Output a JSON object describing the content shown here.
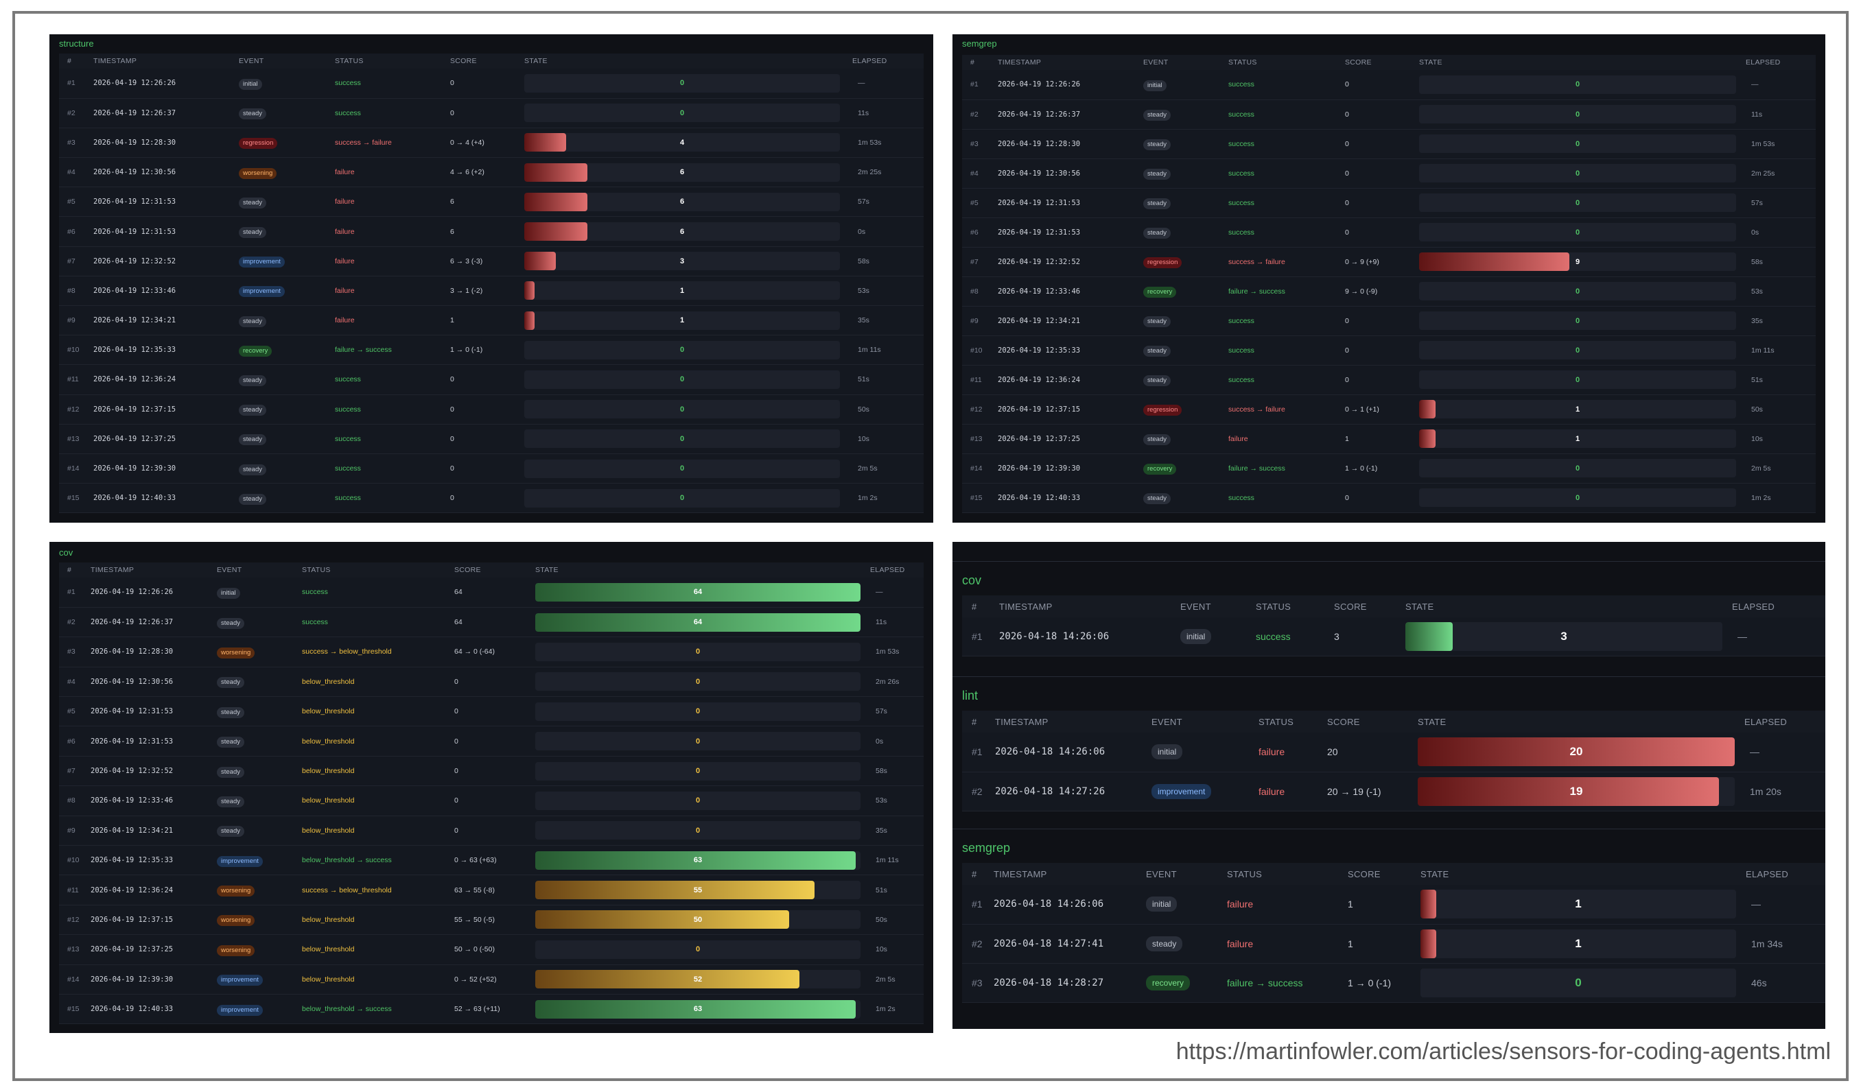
{
  "footer": {
    "url": "https://martinfowler.com/articles/sensors-for-coding-agents.html"
  },
  "headers": {
    "num": "#",
    "timestamp": "TIMESTAMP",
    "event": "EVENT",
    "status": "STATUS",
    "score": "SCORE",
    "state": "STATE",
    "elapsed": "ELAPSED"
  },
  "panels": [
    {
      "id": "structure",
      "title": "structure",
      "scale": "small",
      "rows": [
        {
          "n": "#1",
          "ts": "2026-04-19 12:26:26",
          "ev": "initial",
          "st": "success",
          "sc": "0",
          "val": 0,
          "el": "—"
        },
        {
          "n": "#2",
          "ts": "2026-04-19 12:26:37",
          "ev": "steady",
          "st": "success",
          "sc": "0",
          "val": 0,
          "el": "11s"
        },
        {
          "n": "#3",
          "ts": "2026-04-19 12:28:30",
          "ev": "regression",
          "st": "success → failure",
          "sc": "0 → 4 (+4)",
          "val": 4,
          "el": "1m 53s"
        },
        {
          "n": "#4",
          "ts": "2026-04-19 12:30:56",
          "ev": "worsening",
          "st": "failure",
          "sc": "4 → 6 (+2)",
          "val": 6,
          "el": "2m 25s"
        },
        {
          "n": "#5",
          "ts": "2026-04-19 12:31:53",
          "ev": "steady",
          "st": "failure",
          "sc": "6",
          "val": 6,
          "el": "57s"
        },
        {
          "n": "#6",
          "ts": "2026-04-19 12:31:53",
          "ev": "steady",
          "st": "failure",
          "sc": "6",
          "val": 6,
          "el": "0s"
        },
        {
          "n": "#7",
          "ts": "2026-04-19 12:32:52",
          "ev": "improvement",
          "st": "failure",
          "sc": "6 → 3 (-3)",
          "val": 3,
          "el": "58s"
        },
        {
          "n": "#8",
          "ts": "2026-04-19 12:33:46",
          "ev": "improvement",
          "st": "failure",
          "sc": "3 → 1 (-2)",
          "val": 1,
          "el": "53s"
        },
        {
          "n": "#9",
          "ts": "2026-04-19 12:34:21",
          "ev": "steady",
          "st": "failure",
          "sc": "1",
          "val": 1,
          "el": "35s"
        },
        {
          "n": "#10",
          "ts": "2026-04-19 12:35:33",
          "ev": "recovery",
          "st": "failure → success",
          "sc": "1 → 0 (-1)",
          "val": 0,
          "el": "1m 11s"
        },
        {
          "n": "#11",
          "ts": "2026-04-19 12:36:24",
          "ev": "steady",
          "st": "success",
          "sc": "0",
          "val": 0,
          "el": "51s"
        },
        {
          "n": "#12",
          "ts": "2026-04-19 12:37:15",
          "ev": "steady",
          "st": "success",
          "sc": "0",
          "val": 0,
          "el": "50s"
        },
        {
          "n": "#13",
          "ts": "2026-04-19 12:37:25",
          "ev": "steady",
          "st": "success",
          "sc": "0",
          "val": 0,
          "el": "10s"
        },
        {
          "n": "#14",
          "ts": "2026-04-19 12:39:30",
          "ev": "steady",
          "st": "success",
          "sc": "0",
          "val": 0,
          "el": "2m 5s"
        },
        {
          "n": "#15",
          "ts": "2026-04-19 12:40:33",
          "ev": "steady",
          "st": "success",
          "sc": "0",
          "val": 0,
          "el": "1m 2s"
        }
      ]
    },
    {
      "id": "semgrep",
      "title": "semgrep",
      "scale": "small",
      "rows": [
        {
          "n": "#1",
          "ts": "2026-04-19 12:26:26",
          "ev": "initial",
          "st": "success",
          "sc": "0",
          "val": 0,
          "el": "—"
        },
        {
          "n": "#2",
          "ts": "2026-04-19 12:26:37",
          "ev": "steady",
          "st": "success",
          "sc": "0",
          "val": 0,
          "el": "11s"
        },
        {
          "n": "#3",
          "ts": "2026-04-19 12:28:30",
          "ev": "steady",
          "st": "success",
          "sc": "0",
          "val": 0,
          "el": "1m 53s"
        },
        {
          "n": "#4",
          "ts": "2026-04-19 12:30:56",
          "ev": "steady",
          "st": "success",
          "sc": "0",
          "val": 0,
          "el": "2m 25s"
        },
        {
          "n": "#5",
          "ts": "2026-04-19 12:31:53",
          "ev": "steady",
          "st": "success",
          "sc": "0",
          "val": 0,
          "el": "57s"
        },
        {
          "n": "#6",
          "ts": "2026-04-19 12:31:53",
          "ev": "steady",
          "st": "success",
          "sc": "0",
          "val": 0,
          "el": "0s"
        },
        {
          "n": "#7",
          "ts": "2026-04-19 12:32:52",
          "ev": "regression",
          "st": "success → failure",
          "sc": "0 → 9 (+9)",
          "val": 9,
          "el": "58s"
        },
        {
          "n": "#8",
          "ts": "2026-04-19 12:33:46",
          "ev": "recovery",
          "st": "failure → success",
          "sc": "9 → 0 (-9)",
          "val": 0,
          "el": "53s"
        },
        {
          "n": "#9",
          "ts": "2026-04-19 12:34:21",
          "ev": "steady",
          "st": "success",
          "sc": "0",
          "val": 0,
          "el": "35s"
        },
        {
          "n": "#10",
          "ts": "2026-04-19 12:35:33",
          "ev": "steady",
          "st": "success",
          "sc": "0",
          "val": 0,
          "el": "1m 11s"
        },
        {
          "n": "#11",
          "ts": "2026-04-19 12:36:24",
          "ev": "steady",
          "st": "success",
          "sc": "0",
          "val": 0,
          "el": "51s"
        },
        {
          "n": "#12",
          "ts": "2026-04-19 12:37:15",
          "ev": "regression",
          "st": "success → failure",
          "sc": "0 → 1 (+1)",
          "val": 1,
          "el": "50s"
        },
        {
          "n": "#13",
          "ts": "2026-04-19 12:37:25",
          "ev": "steady",
          "st": "failure",
          "sc": "1",
          "val": 1,
          "el": "10s"
        },
        {
          "n": "#14",
          "ts": "2026-04-19 12:39:30",
          "ev": "recovery",
          "st": "failure → success",
          "sc": "1 → 0 (-1)",
          "val": 0,
          "el": "2m 5s"
        },
        {
          "n": "#15",
          "ts": "2026-04-19 12:40:33",
          "ev": "steady",
          "st": "success",
          "sc": "0",
          "val": 0,
          "el": "1m 2s"
        }
      ]
    },
    {
      "id": "cov",
      "title": "cov",
      "scale": "small",
      "rows": [
        {
          "n": "#1",
          "ts": "2026-04-19 12:26:26",
          "ev": "initial",
          "st": "success",
          "sc": "64",
          "val": 64,
          "el": "—"
        },
        {
          "n": "#2",
          "ts": "2026-04-19 12:26:37",
          "ev": "steady",
          "st": "success",
          "sc": "64",
          "val": 64,
          "el": "11s"
        },
        {
          "n": "#3",
          "ts": "2026-04-19 12:28:30",
          "ev": "worsening",
          "st": "success → below_threshold",
          "sc": "64 → 0 (-64)",
          "val": 0,
          "el": "1m 53s"
        },
        {
          "n": "#4",
          "ts": "2026-04-19 12:30:56",
          "ev": "steady",
          "st": "below_threshold",
          "sc": "0",
          "val": 0,
          "el": "2m 26s"
        },
        {
          "n": "#5",
          "ts": "2026-04-19 12:31:53",
          "ev": "steady",
          "st": "below_threshold",
          "sc": "0",
          "val": 0,
          "el": "57s"
        },
        {
          "n": "#6",
          "ts": "2026-04-19 12:31:53",
          "ev": "steady",
          "st": "below_threshold",
          "sc": "0",
          "val": 0,
          "el": "0s"
        },
        {
          "n": "#7",
          "ts": "2026-04-19 12:32:52",
          "ev": "steady",
          "st": "below_threshold",
          "sc": "0",
          "val": 0,
          "el": "58s"
        },
        {
          "n": "#8",
          "ts": "2026-04-19 12:33:46",
          "ev": "steady",
          "st": "below_threshold",
          "sc": "0",
          "val": 0,
          "el": "53s"
        },
        {
          "n": "#9",
          "ts": "2026-04-19 12:34:21",
          "ev": "steady",
          "st": "below_threshold",
          "sc": "0",
          "val": 0,
          "el": "35s"
        },
        {
          "n": "#10",
          "ts": "2026-04-19 12:35:33",
          "ev": "improvement",
          "st": "below_threshold → success",
          "sc": "0 → 63 (+63)",
          "val": 63,
          "el": "1m 11s"
        },
        {
          "n": "#11",
          "ts": "2026-04-19 12:36:24",
          "ev": "worsening",
          "st": "success → below_threshold",
          "sc": "63 → 55 (-8)",
          "val": 55,
          "el": "51s"
        },
        {
          "n": "#12",
          "ts": "2026-04-19 12:37:15",
          "ev": "worsening",
          "st": "below_threshold",
          "sc": "55 → 50 (-5)",
          "val": 50,
          "el": "50s"
        },
        {
          "n": "#13",
          "ts": "2026-04-19 12:37:25",
          "ev": "worsening",
          "st": "below_threshold",
          "sc": "50 → 0 (-50)",
          "val": 0,
          "el": "10s"
        },
        {
          "n": "#14",
          "ts": "2026-04-19 12:39:30",
          "ev": "improvement",
          "st": "below_threshold",
          "sc": "0 → 52 (+52)",
          "val": 52,
          "el": "2m 5s"
        },
        {
          "n": "#15",
          "ts": "2026-04-19 12:40:33",
          "ev": "improvement",
          "st": "below_threshold → success",
          "sc": "52 → 63 (+11)",
          "val": 63,
          "el": "1m 2s"
        }
      ]
    },
    {
      "id": "cov2",
      "title": "cov",
      "scale": "large",
      "rows": [
        {
          "n": "#1",
          "ts": "2026-04-18 14:26:06",
          "ev": "initial",
          "st": "success",
          "sc": "3",
          "val": 3,
          "el": "—"
        }
      ]
    },
    {
      "id": "lint",
      "title": "lint",
      "scale": "large",
      "rows": [
        {
          "n": "#1",
          "ts": "2026-04-18 14:26:06",
          "ev": "initial",
          "st": "failure",
          "sc": "20",
          "val": 20,
          "el": "—"
        },
        {
          "n": "#2",
          "ts": "2026-04-18 14:27:26",
          "ev": "improvement",
          "st": "failure",
          "sc": "20 → 19 (-1)",
          "val": 19,
          "el": "1m 20s"
        }
      ]
    },
    {
      "id": "semgrep2",
      "title": "semgrep",
      "scale": "large",
      "rows": [
        {
          "n": "#1",
          "ts": "2026-04-18 14:26:06",
          "ev": "initial",
          "st": "failure",
          "sc": "1",
          "val": 1,
          "el": "—"
        },
        {
          "n": "#2",
          "ts": "2026-04-18 14:27:41",
          "ev": "steady",
          "st": "failure",
          "sc": "1",
          "val": 1,
          "el": "1m 34s"
        },
        {
          "n": "#3",
          "ts": "2026-04-18 14:28:27",
          "ev": "recovery",
          "st": "failure → success",
          "sc": "1 → 0 (-1)",
          "val": 0,
          "el": "46s"
        }
      ]
    }
  ]
}
